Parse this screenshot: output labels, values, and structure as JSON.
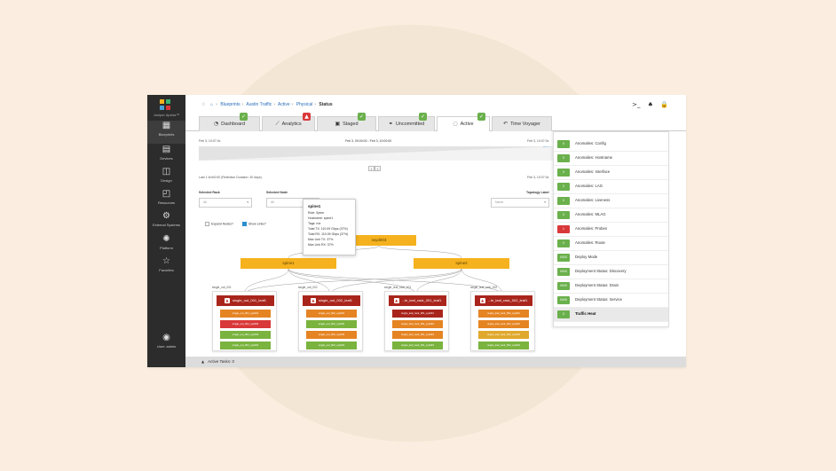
{
  "sidebar": {
    "brand": "Juniper Apstra™",
    "items": [
      {
        "label": "Blueprints",
        "icon": "blueprints-icon",
        "glyph": "▦"
      },
      {
        "label": "Devices",
        "icon": "devices-icon",
        "glyph": "▤"
      },
      {
        "label": "Design",
        "icon": "design-icon",
        "glyph": "◫"
      },
      {
        "label": "Resources",
        "icon": "resources-icon",
        "glyph": "◰"
      },
      {
        "label": "External Systems",
        "icon": "external-systems-icon",
        "glyph": "⚙"
      },
      {
        "label": "Platform",
        "icon": "platform-icon",
        "glyph": "✺"
      },
      {
        "label": "Favorites",
        "icon": "star-icon",
        "glyph": "☆"
      }
    ],
    "user": {
      "label": "User: admin",
      "icon": "user-icon",
      "glyph": "◉"
    }
  },
  "breadcrumb": {
    "star": "☆",
    "home": "⌂",
    "items": [
      "Blueprints",
      "Austin Traffic",
      "Active",
      "Physical"
    ],
    "current": "Status"
  },
  "top_icons": {
    "terminal": ">_",
    "bell": "♠",
    "lock": "🔒"
  },
  "tabs": [
    {
      "label": "Dashboard",
      "glyph": "◔",
      "badge": "✓",
      "badge_color": "#6ab04c"
    },
    {
      "label": "Analytics",
      "glyph": "⟋",
      "badge": "▲",
      "badge_color": "#d9383a"
    },
    {
      "label": "Staged",
      "glyph": "▣",
      "badge": "✓",
      "badge_color": "#6ab04c"
    },
    {
      "label": "Uncommitted",
      "glyph": "⚭",
      "badge": "✓",
      "badge_color": "#6ab04c"
    },
    {
      "label": "Active",
      "glyph": "◌",
      "badge": "✓",
      "badge_color": "#6ab04c"
    },
    {
      "label": "Time Voyager",
      "glyph": "↶",
      "badge": "",
      "badge_color": ""
    }
  ],
  "timeline": {
    "left": "Feb 3, 10:07:3x",
    "center": "Feb 3, 09:00:00 - Feb 3, 10:00:00",
    "right": "Feb 3, 10:07:3x",
    "sub_left": "Last 1 4m00:00 (Retention Duration: 30 days)",
    "sub_right": "Feb 3, 10:07:3x",
    "pager": [
      "‹",
      "›"
    ]
  },
  "filters": {
    "selected_rack_label": "Selected Rack",
    "selected_rack_value": "All",
    "selected_node_label": "Selected Node",
    "selected_node_value": "All",
    "topology_label_label": "Topology Label",
    "topology_label_value": "Name",
    "expand_nodes": "Expand Nodes?",
    "show_links": "Show Links?"
  },
  "topology": {
    "superspine": "ssyd003",
    "spines": [
      "spine1",
      "spine2"
    ],
    "leaves": [
      {
        "caption": "single_out_001",
        "name": "single_out_001_leaf1",
        "ports": [
          {
            "label": "single_out_001_sys001",
            "color": "orange"
          },
          {
            "label": "single_out_001_sys002",
            "color": "red"
          },
          {
            "label": "single_out_001_sys003",
            "color": "green"
          },
          {
            "label": "single_out_001_sys004",
            "color": "green"
          }
        ]
      },
      {
        "caption": "single_out_002",
        "name": "single_out_002_leaf1",
        "ports": [
          {
            "label": "single_out_002_sys001",
            "color": "orange"
          },
          {
            "label": "single_out_002_sys002",
            "color": "green"
          },
          {
            "label": "single_out_002_sys003",
            "color": "orange"
          },
          {
            "label": "single_out_002_sys004",
            "color": "green"
          }
        ]
      },
      {
        "caption": "single_leaf_rack_001",
        "name": "...le_leaf_rack_001_leaf1",
        "ports": [
          {
            "label": "single_leaf_rack_001_sys001",
            "color": "dred"
          },
          {
            "label": "single_leaf_rack_001_sys002",
            "color": "orange"
          },
          {
            "label": "single_leaf_rack_001_sys003",
            "color": "orange"
          },
          {
            "label": "single_leaf_rack_001_sys004",
            "color": "green"
          }
        ]
      },
      {
        "caption": "single_leaf_rack_002",
        "name": "...le_leaf_rack_002_leaf1",
        "ports": [
          {
            "label": "single_leaf_rack_002_sys001",
            "color": "orange"
          },
          {
            "label": "single_leaf_rack_002_sys002",
            "color": "orange"
          },
          {
            "label": "single_leaf_rack_002_sys003",
            "color": "yellow"
          },
          {
            "label": "single_leaf_rack_002_sys004",
            "color": "green"
          }
        ]
      }
    ]
  },
  "tooltip": {
    "title": "spine1",
    "rows": [
      "Role: Spine",
      "Hostname: spine1",
      "Tags: n/a",
      "Total TX: 110.09 Gbps (37%)",
      "Total RX: 110.09 Gbps (37%)",
      "Max Link TX: 37%",
      "Max Link RX: 37%"
    ]
  },
  "anomalies": [
    {
      "badge": "0",
      "color": "#6ab04c",
      "label": "Anomalies: Config"
    },
    {
      "badge": "0",
      "color": "#6ab04c",
      "label": "Anomalies: Hostname"
    },
    {
      "badge": "0",
      "color": "#6ab04c",
      "label": "Anomalies: Interface"
    },
    {
      "badge": "0",
      "color": "#6ab04c",
      "label": "Anomalies: LAG"
    },
    {
      "badge": "0",
      "color": "#6ab04c",
      "label": "Anomalies: Liveness"
    },
    {
      "badge": "0",
      "color": "#6ab04c",
      "label": "Anomalies: MLAG"
    },
    {
      "badge": "1",
      "color": "#d9383a",
      "label": "Anomalies: Probes"
    },
    {
      "badge": "0",
      "color": "#6ab04c",
      "label": "Anomalies: Route"
    },
    {
      "badge": "0/0/0",
      "color": "#6ab04c",
      "label": "Deploy Mode"
    },
    {
      "badge": "0/0/0",
      "color": "#6ab04c",
      "label": "Deployment Status: Discovery"
    },
    {
      "badge": "0/0/0",
      "color": "#6ab04c",
      "label": "Deployment Status: Drain"
    },
    {
      "badge": "0/0/0",
      "color": "#6ab04c",
      "label": "Deployment Status: Service"
    },
    {
      "badge": "0",
      "color": "#6ab04c",
      "label": "Traffic Heat"
    }
  ],
  "tasks": {
    "label": "Active Tasks: 0",
    "glyph": "▲"
  }
}
